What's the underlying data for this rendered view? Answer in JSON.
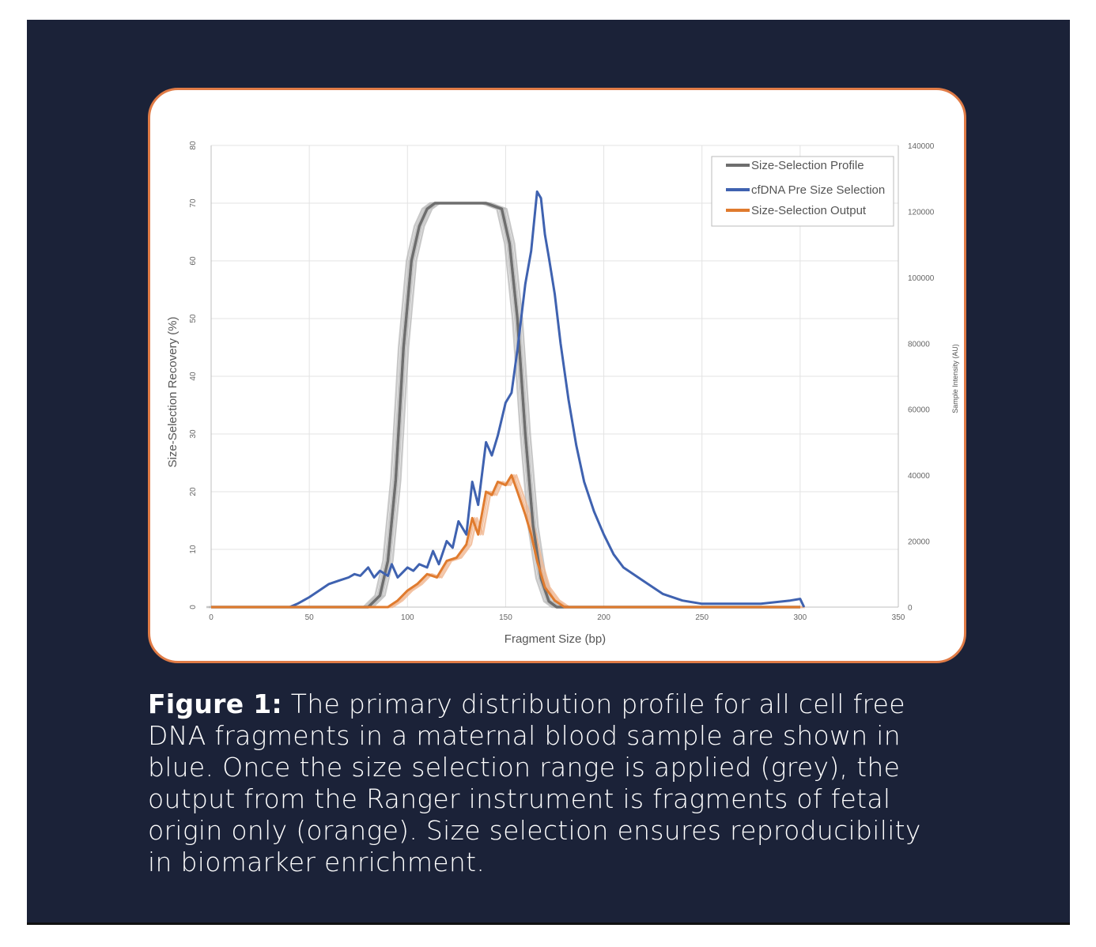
{
  "caption": {
    "bold": "Figure 1:",
    "text": " The primary distribution profile for all cell free DNA fragments in a maternal blood sample are shown in blue. Once the size selection range is applied (grey), the output from the Ranger instrument is fragments of fetal origin only (orange). Size selection ensures reproducibility in biomarker enrichment."
  },
  "colors": {
    "background": "#1b2238",
    "card_border": "#e07b46",
    "profile": "#6e6e6e",
    "pre": "#3f62b0",
    "output": "#e07b2e"
  },
  "chart_data": {
    "type": "line",
    "xlabel": "Fragment Size (bp)",
    "ylabel": "Size-Selection Recovery (%)",
    "y2label": "Sample Intensity (AU)",
    "xlim": [
      0,
      350
    ],
    "ylim": [
      0,
      80
    ],
    "y2lim": [
      0,
      140000
    ],
    "x_ticks": [
      "0",
      "50",
      "100",
      "150",
      "200",
      "250",
      "300",
      "350"
    ],
    "y_ticks": [
      "0",
      "10",
      "20",
      "30",
      "40",
      "50",
      "60",
      "70",
      "80"
    ],
    "y2_ticks": [
      "0",
      "20000",
      "40000",
      "60000",
      "80000",
      "100000",
      "120000",
      "140000"
    ],
    "grid": true,
    "legend_position": "top-right",
    "series": [
      {
        "name": "Size-Selection Profile",
        "axis": "left",
        "color": "#6e6e6e",
        "x": [
          0,
          80,
          86,
          90,
          94,
          98,
          102,
          106,
          110,
          114,
          118,
          122,
          130,
          140,
          148,
          152,
          156,
          160,
          164,
          168,
          172,
          176,
          180,
          300
        ],
        "y": [
          0,
          0,
          2,
          8,
          22,
          45,
          60,
          66,
          69,
          70,
          70,
          70,
          70,
          70,
          69,
          63,
          50,
          30,
          14,
          5,
          1,
          0,
          0,
          0
        ]
      },
      {
        "name": "cfDNA Pre Size Selection",
        "axis": "right",
        "color": "#3f62b0",
        "x": [
          0,
          40,
          44,
          50,
          55,
          60,
          65,
          70,
          73,
          76,
          80,
          83,
          86,
          90,
          92,
          95,
          100,
          103,
          106,
          110,
          113,
          116,
          120,
          123,
          126,
          130,
          133,
          136,
          140,
          143,
          146,
          150,
          153,
          156,
          160,
          163,
          166,
          168,
          170,
          172,
          175,
          178,
          182,
          186,
          190,
          195,
          200,
          205,
          210,
          220,
          230,
          240,
          250,
          260,
          280,
          295,
          300,
          302
        ],
        "y": [
          0,
          0,
          1000,
          3000,
          5000,
          7000,
          8000,
          9000,
          10000,
          9500,
          12000,
          9000,
          11000,
          9500,
          13000,
          9000,
          12000,
          11000,
          13000,
          12000,
          17000,
          13000,
          20000,
          18000,
          26000,
          22000,
          38000,
          31000,
          50000,
          46000,
          52000,
          62000,
          65000,
          78000,
          98000,
          108000,
          126000,
          124000,
          113000,
          106000,
          95000,
          80000,
          63000,
          49000,
          38000,
          29000,
          22000,
          16000,
          12000,
          8000,
          4000,
          2000,
          1000,
          1000,
          1000,
          2000,
          2500,
          0
        ]
      },
      {
        "name": "Size-Selection Output",
        "axis": "right",
        "color": "#e07b2e",
        "x": [
          0,
          90,
          95,
          100,
          105,
          110,
          115,
          120,
          125,
          130,
          133,
          136,
          140,
          143,
          146,
          150,
          153,
          156,
          160,
          163,
          166,
          170,
          175,
          180,
          300
        ],
        "y": [
          0,
          0,
          2000,
          5000,
          7000,
          10000,
          9000,
          14000,
          15000,
          19000,
          27000,
          22000,
          35000,
          34000,
          38000,
          37000,
          40000,
          35000,
          28000,
          22000,
          14000,
          6000,
          2000,
          0,
          0
        ]
      }
    ]
  }
}
